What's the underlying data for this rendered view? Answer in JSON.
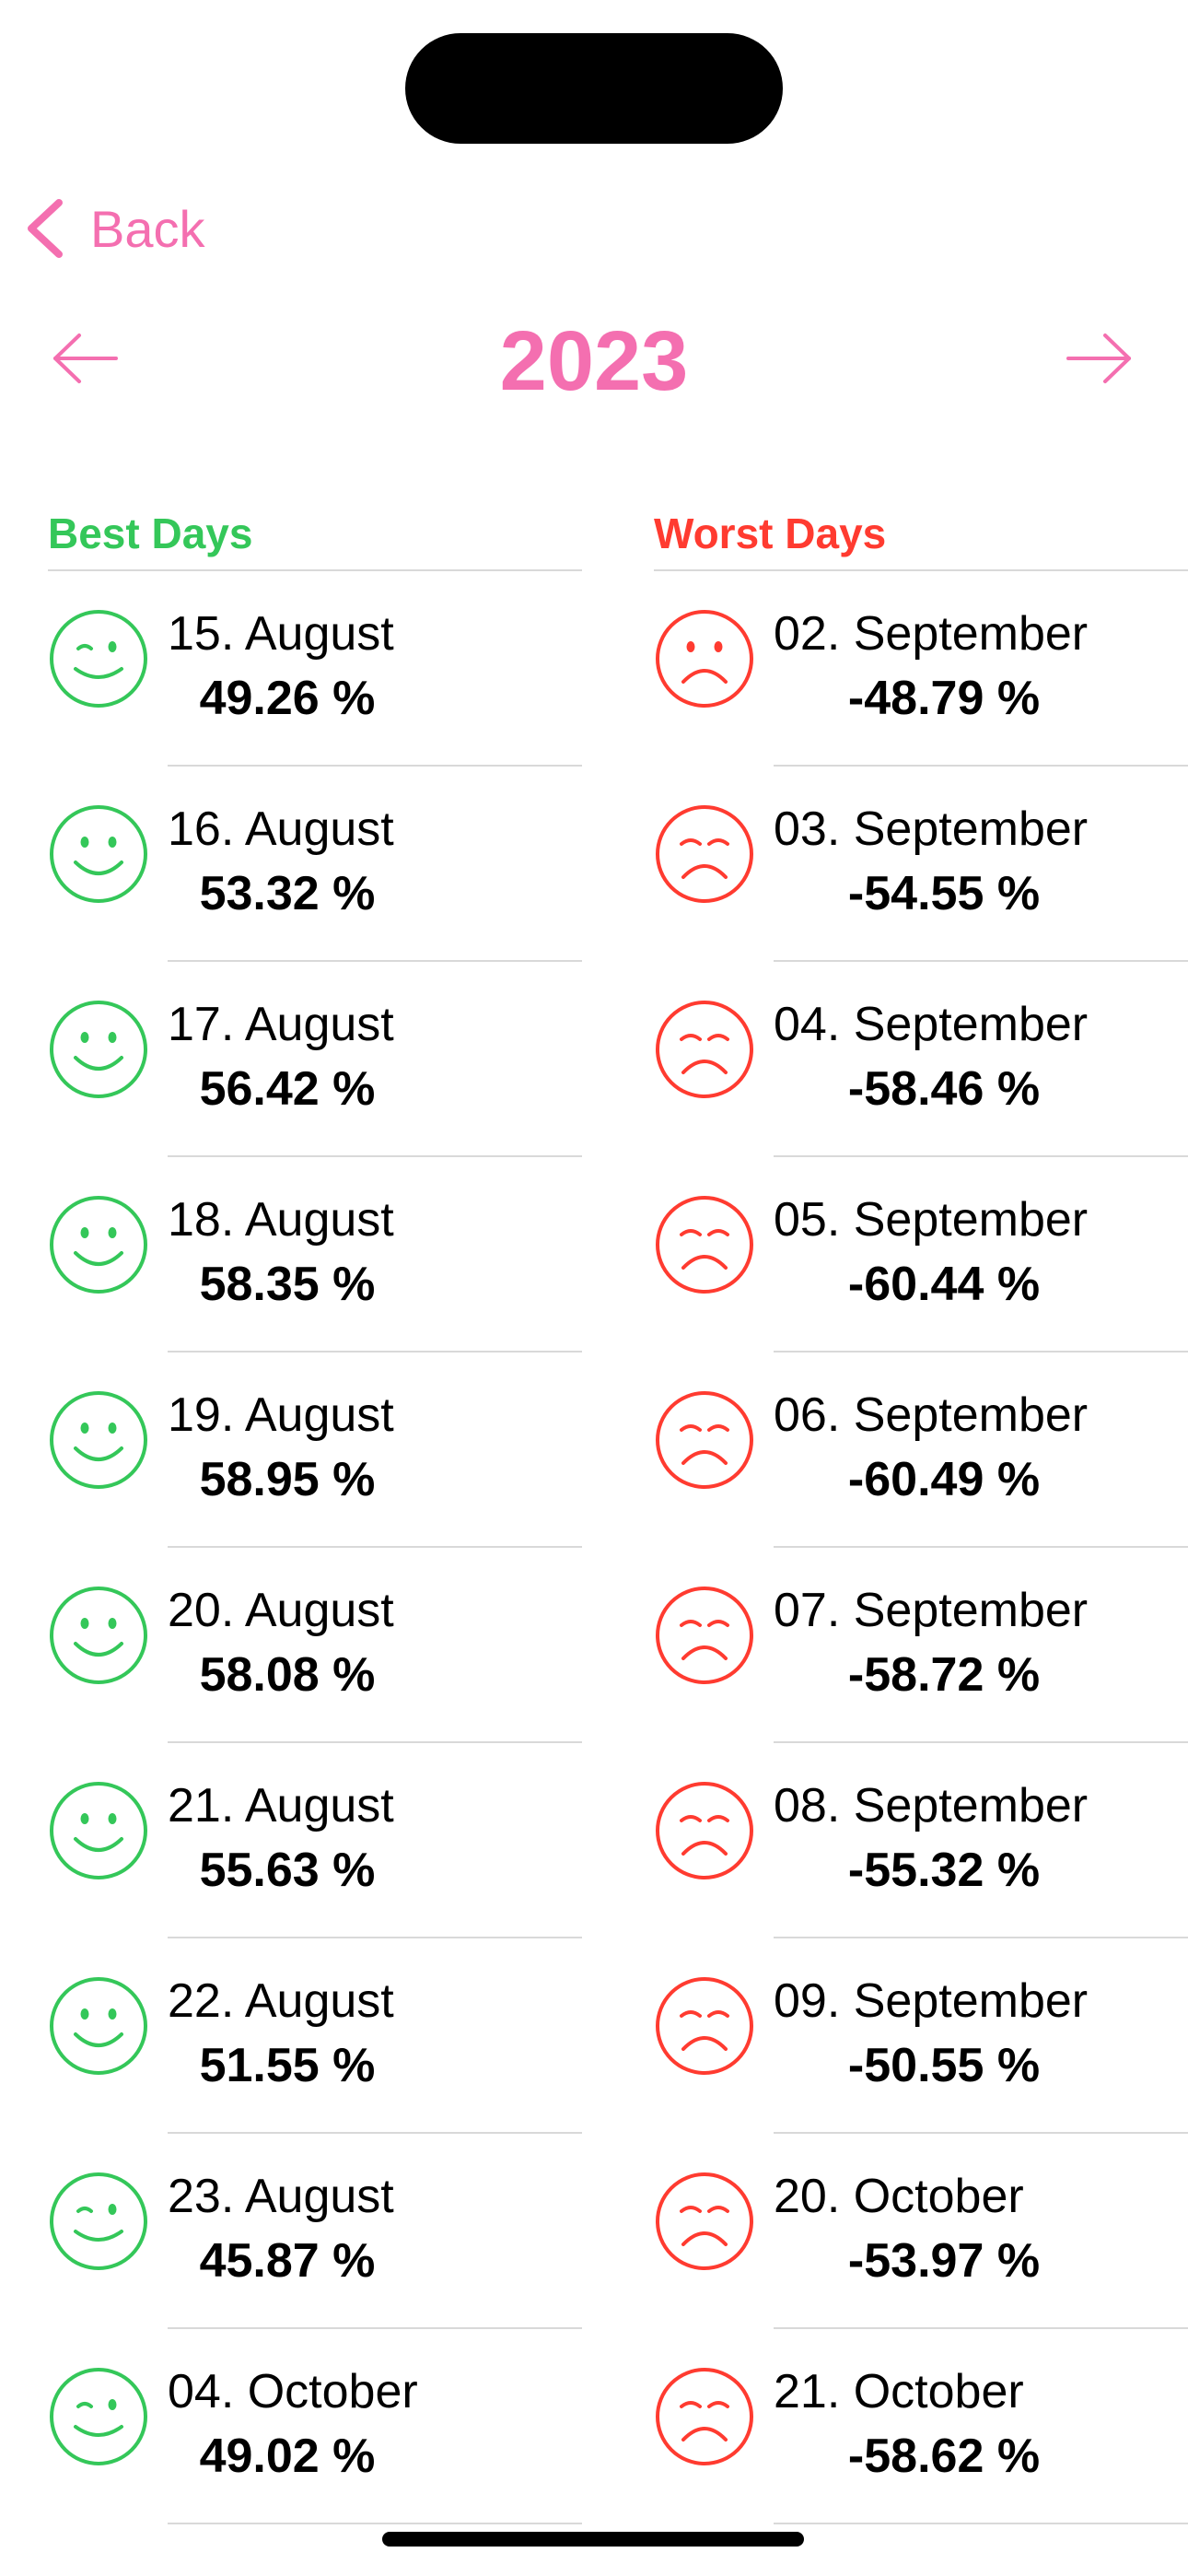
{
  "nav": {
    "back_label": "Back",
    "year": "2023"
  },
  "best": {
    "title": "Best Days",
    "color": "#34c759",
    "items": [
      {
        "date": "15. August",
        "pct": "49.26 %",
        "icon": "wink-smile-icon"
      },
      {
        "date": "16. August",
        "pct": "53.32 %",
        "icon": "smile-icon"
      },
      {
        "date": "17. August",
        "pct": "56.42 %",
        "icon": "smile-icon"
      },
      {
        "date": "18. August",
        "pct": "58.35 %",
        "icon": "smile-icon"
      },
      {
        "date": "19. August",
        "pct": "58.95 %",
        "icon": "smile-icon"
      },
      {
        "date": "20. August",
        "pct": "58.08 %",
        "icon": "smile-icon"
      },
      {
        "date": "21. August",
        "pct": "55.63 %",
        "icon": "smile-icon"
      },
      {
        "date": "22. August",
        "pct": "51.55 %",
        "icon": "smile-icon"
      },
      {
        "date": "23. August",
        "pct": "45.87 %",
        "icon": "wink-smile-icon"
      },
      {
        "date": "04. October",
        "pct": "49.02 %",
        "icon": "wink-smile-icon"
      }
    ]
  },
  "worst": {
    "title": "Worst Days",
    "color": "#ff3b30",
    "items": [
      {
        "date": "02. September",
        "pct": "-48.79 %",
        "icon": "frown-icon"
      },
      {
        "date": "03. September",
        "pct": "-54.55 %",
        "icon": "sad-icon"
      },
      {
        "date": "04. September",
        "pct": "-58.46 %",
        "icon": "sad-icon"
      },
      {
        "date": "05. September",
        "pct": "-60.44 %",
        "icon": "sad-icon"
      },
      {
        "date": "06. September",
        "pct": "-60.49 %",
        "icon": "sad-icon"
      },
      {
        "date": "07. September",
        "pct": "-58.72 %",
        "icon": "sad-icon"
      },
      {
        "date": "08. September",
        "pct": "-55.32 %",
        "icon": "sad-icon"
      },
      {
        "date": "09. September",
        "pct": "-50.55 %",
        "icon": "sad-icon"
      },
      {
        "date": "20. October",
        "pct": "-53.97 %",
        "icon": "sad-icon"
      },
      {
        "date": "21. October",
        "pct": "-58.62 %",
        "icon": "sad-icon"
      }
    ]
  },
  "accent_color": "#f46fb0"
}
